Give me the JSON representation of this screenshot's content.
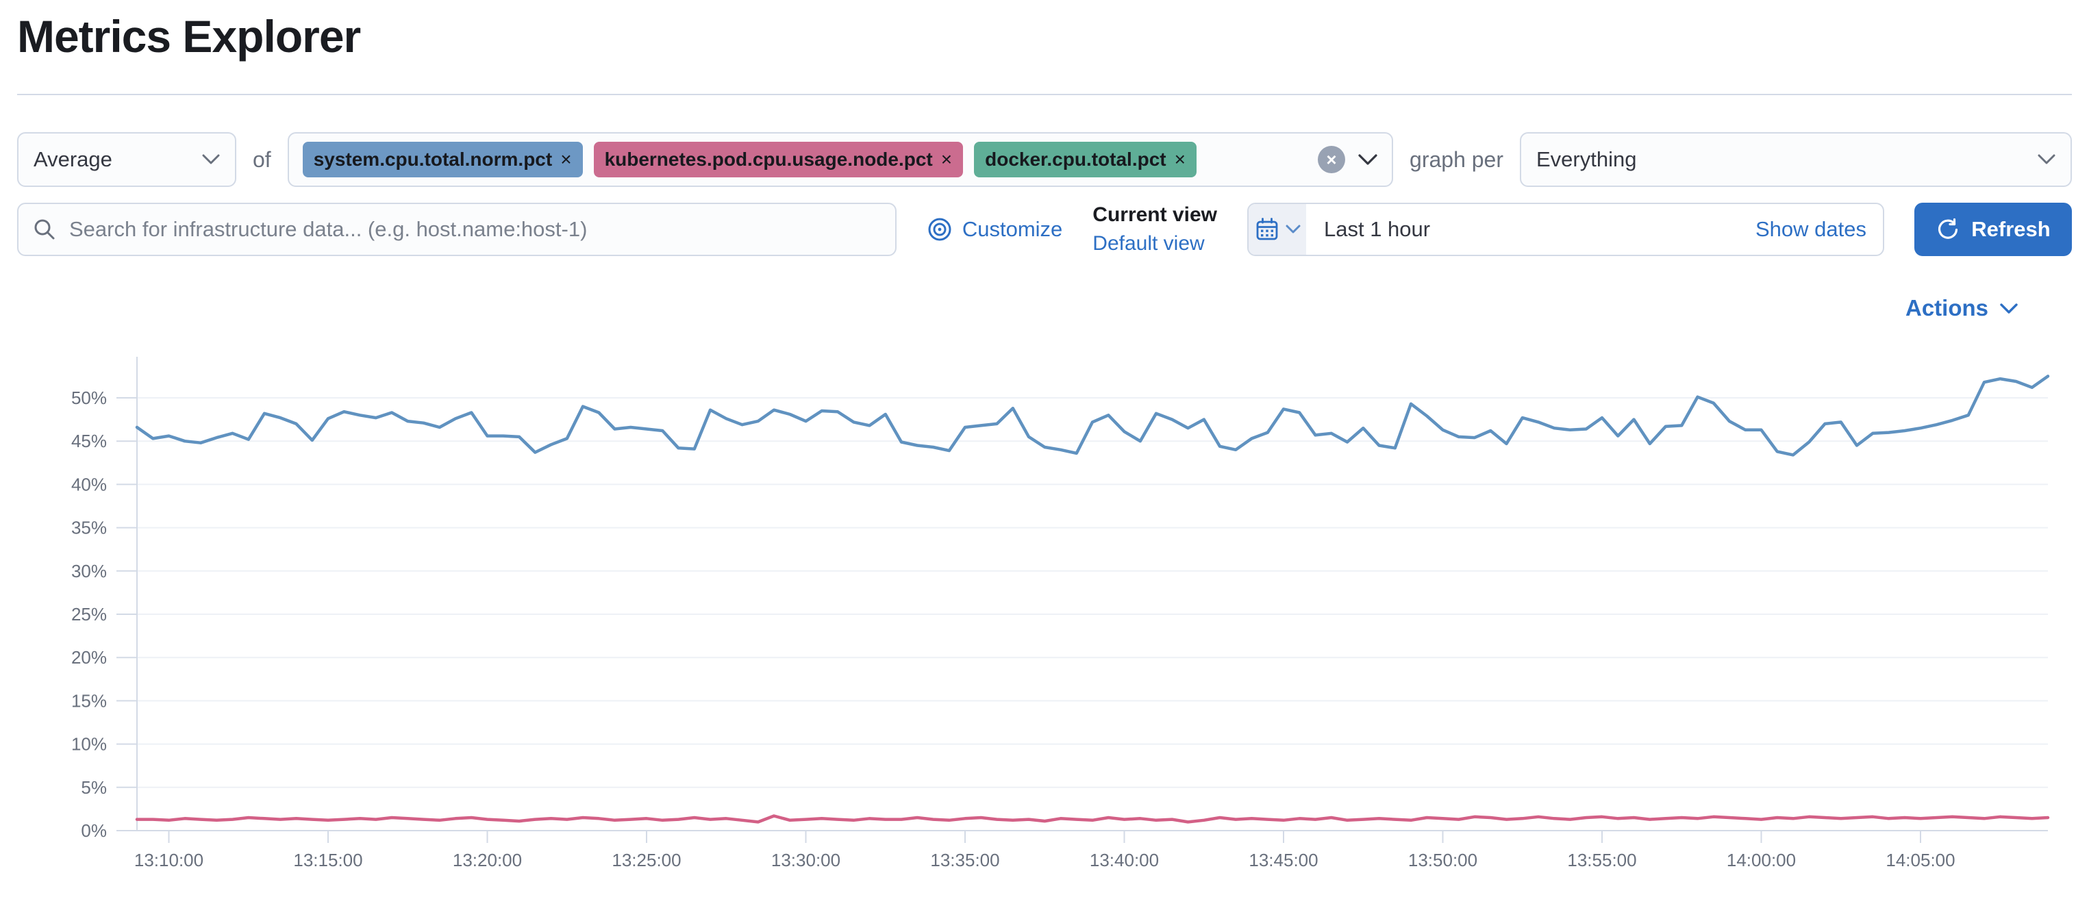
{
  "page": {
    "title": "Metrics Explorer"
  },
  "colors": {
    "primary": "#2d6fc4",
    "text": "#1a1c21",
    "muted_text": "#69707d",
    "border": "#d3dae6",
    "badge_blue": "#6d98c4",
    "badge_pink": "#cb6c8f",
    "badge_green": "#5fae97",
    "line_blue": "#6092C0",
    "line_red": "#D36086"
  },
  "toolbar": {
    "aggregation": {
      "value": "Average"
    },
    "of_label": "of",
    "metrics": [
      {
        "label": "system.cpu.total.norm.pct",
        "remove_label": "×",
        "color": "#6d98c4"
      },
      {
        "label": "kubernetes.pod.cpu.usage.node.pct",
        "remove_label": "×",
        "color": "#cb6c8f"
      },
      {
        "label": "docker.cpu.total.pct",
        "remove_label": "×",
        "color": "#5fae97"
      }
    ],
    "clear_label": "×",
    "graph_per_label": "graph per",
    "group_by": {
      "value": "Everything"
    }
  },
  "searchbar": {
    "placeholder": "Search for infrastructure data... (e.g. host.name:host-1)"
  },
  "view_controls": {
    "customize_label": "Customize",
    "current_view_label": "Current view",
    "default_view_label": "Default view"
  },
  "datepicker": {
    "value": "Last 1 hour",
    "show_dates_label": "Show dates"
  },
  "refresh_label": "Refresh",
  "actions_label": "Actions",
  "chart_data": {
    "type": "line",
    "unit": "%",
    "grid": true,
    "legend": "none",
    "ylim": [
      0,
      53.5
    ],
    "x_start": "13:09:00",
    "interval_seconds": 30,
    "x_ticks": [
      "13:10:00",
      "13:15:00",
      "13:20:00",
      "13:25:00",
      "13:30:00",
      "13:35:00",
      "13:40:00",
      "13:45:00",
      "13:50:00",
      "13:55:00",
      "14:00:00",
      "14:05:00"
    ],
    "y_ticks": [
      "0%",
      "5%",
      "10%",
      "15%",
      "20%",
      "25%",
      "30%",
      "35%",
      "40%",
      "45%",
      "50%"
    ],
    "series": [
      {
        "name": "series-1-blue",
        "color": "#6092C0",
        "values": [
          46.6,
          45.3,
          45.6,
          45.0,
          44.8,
          45.4,
          45.9,
          45.2,
          48.2,
          47.7,
          47.0,
          45.1,
          47.6,
          48.4,
          48.0,
          47.7,
          48.3,
          47.3,
          47.1,
          46.6,
          47.6,
          48.3,
          45.6,
          45.6,
          45.5,
          43.7,
          44.6,
          45.3,
          49.0,
          48.3,
          46.4,
          46.6,
          46.4,
          46.2,
          44.2,
          44.1,
          48.6,
          47.6,
          46.9,
          47.3,
          48.6,
          48.1,
          47.3,
          48.5,
          48.4,
          47.2,
          46.8,
          48.1,
          44.9,
          44.5,
          44.3,
          43.9,
          46.6,
          46.8,
          47.0,
          48.8,
          45.5,
          44.3,
          44.0,
          43.6,
          47.2,
          48.0,
          46.1,
          45.0,
          48.2,
          47.5,
          46.5,
          47.5,
          44.4,
          44.0,
          45.3,
          46.0,
          48.7,
          48.3,
          45.7,
          45.9,
          44.9,
          46.5,
          44.5,
          44.2,
          49.3,
          47.9,
          46.3,
          45.5,
          45.4,
          46.2,
          44.7,
          47.7,
          47.2,
          46.5,
          46.3,
          46.4,
          47.7,
          45.6,
          47.5,
          44.7,
          46.7,
          46.8,
          50.1,
          49.4,
          47.3,
          46.3,
          46.3,
          43.8,
          43.4,
          44.9,
          47.0,
          47.2,
          44.5,
          45.9,
          46.0,
          46.2,
          46.5,
          46.9,
          47.4,
          48.0,
          51.8,
          52.2,
          51.9,
          51.2,
          52.5
        ]
      },
      {
        "name": "series-2-red",
        "color": "#D36086",
        "values": [
          1.3,
          1.3,
          1.2,
          1.4,
          1.3,
          1.2,
          1.3,
          1.5,
          1.4,
          1.3,
          1.4,
          1.3,
          1.2,
          1.3,
          1.4,
          1.3,
          1.5,
          1.4,
          1.3,
          1.2,
          1.4,
          1.5,
          1.3,
          1.2,
          1.1,
          1.3,
          1.4,
          1.3,
          1.5,
          1.4,
          1.2,
          1.3,
          1.4,
          1.2,
          1.3,
          1.5,
          1.3,
          1.4,
          1.2,
          1.0,
          1.7,
          1.2,
          1.3,
          1.4,
          1.3,
          1.2,
          1.4,
          1.3,
          1.3,
          1.5,
          1.3,
          1.2,
          1.4,
          1.5,
          1.3,
          1.2,
          1.3,
          1.1,
          1.4,
          1.3,
          1.2,
          1.5,
          1.3,
          1.4,
          1.2,
          1.3,
          1.0,
          1.2,
          1.5,
          1.3,
          1.4,
          1.3,
          1.2,
          1.4,
          1.3,
          1.5,
          1.2,
          1.3,
          1.4,
          1.3,
          1.2,
          1.5,
          1.4,
          1.3,
          1.6,
          1.5,
          1.3,
          1.4,
          1.6,
          1.4,
          1.3,
          1.5,
          1.6,
          1.4,
          1.5,
          1.3,
          1.4,
          1.5,
          1.4,
          1.6,
          1.5,
          1.4,
          1.3,
          1.5,
          1.4,
          1.6,
          1.5,
          1.4,
          1.5,
          1.6,
          1.4,
          1.5,
          1.4,
          1.5,
          1.6,
          1.5,
          1.4,
          1.6,
          1.5,
          1.4,
          1.5
        ]
      }
    ]
  }
}
